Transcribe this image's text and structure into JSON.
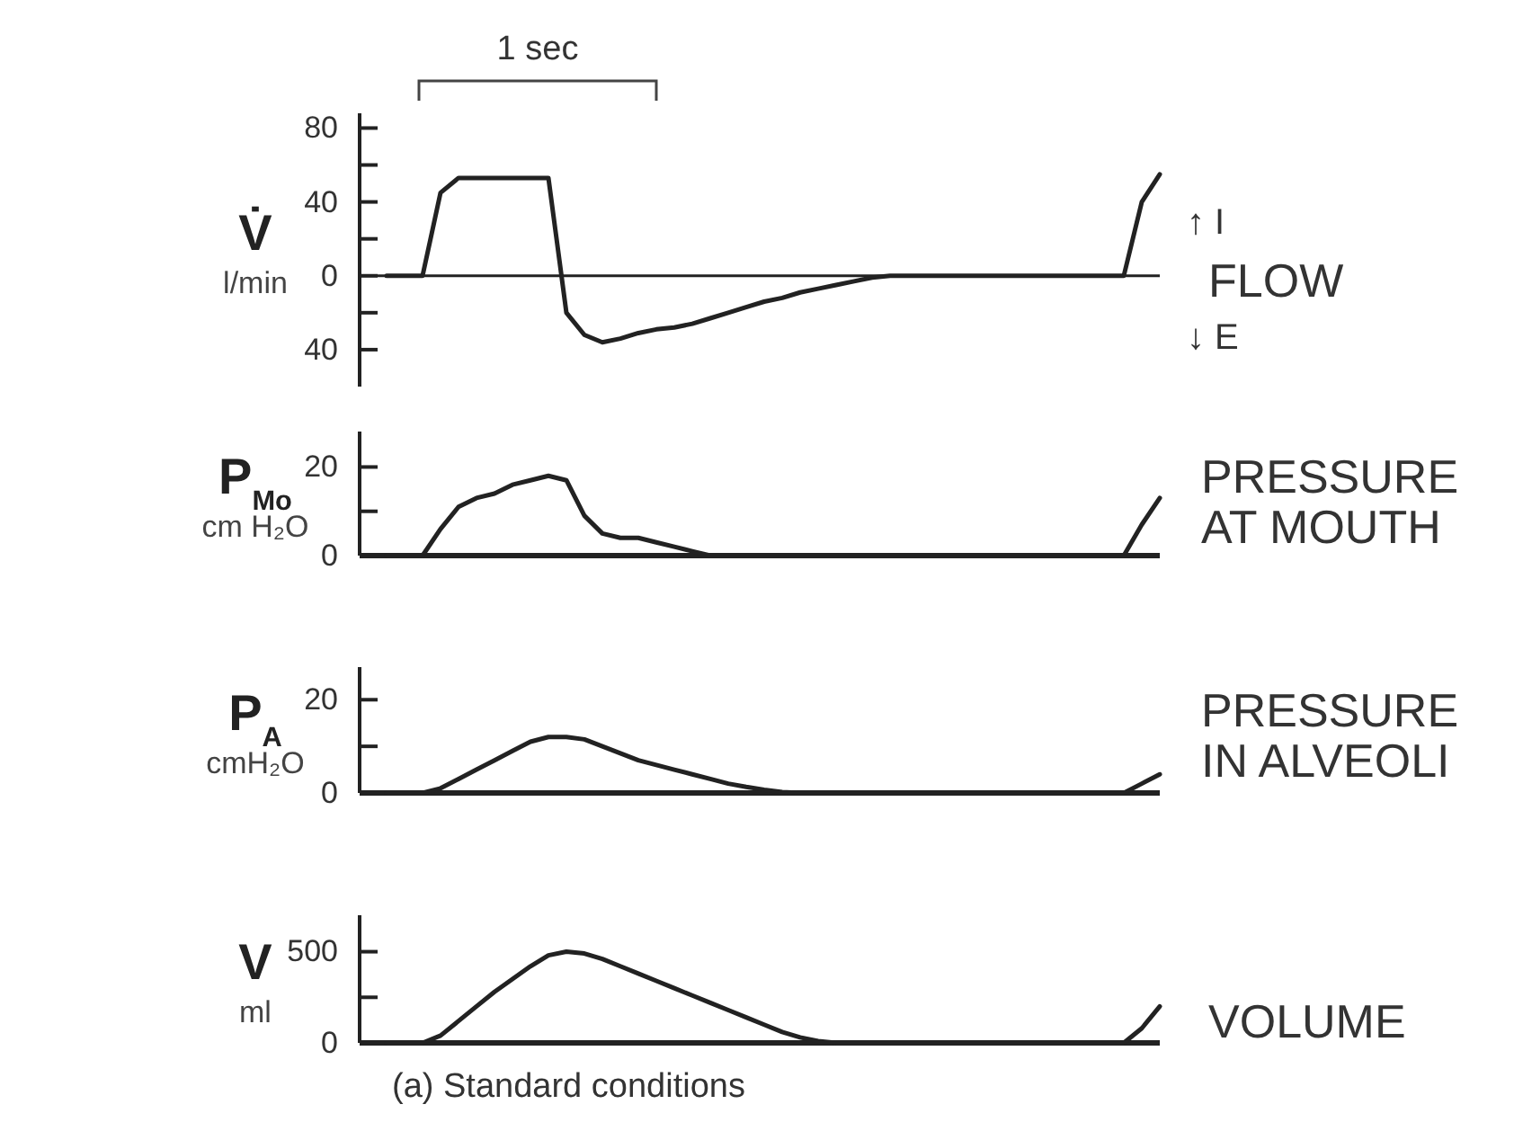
{
  "chart_data": [
    {
      "type": "line",
      "ylabel": "V̇ l/min",
      "tick_labels": "y",
      "categories": [
        null,
        null,
        null,
        null,
        null,
        null,
        null,
        null,
        null,
        null,
        null,
        null,
        null,
        null,
        null,
        null,
        null,
        null,
        null,
        null,
        null,
        null,
        null,
        null,
        null,
        null,
        null,
        null,
        null,
        null,
        null,
        null,
        null,
        null,
        null,
        null,
        null,
        null,
        null,
        null,
        null,
        null,
        null,
        null
      ],
      "series": [
        {
          "name": "FLOW",
          "color": "#222222",
          "values": [
            0,
            0,
            0,
            45,
            53,
            53,
            53,
            53,
            53,
            53,
            -20,
            -32,
            -36,
            -34,
            -31,
            -29,
            -28,
            -26,
            -23,
            -20,
            -17,
            -14,
            -12,
            -9,
            -7,
            -5,
            -3,
            -1,
            0,
            0,
            0,
            0,
            0,
            0,
            0,
            0,
            0,
            0,
            0,
            0,
            0,
            0,
            40,
            55
          ]
        }
      ],
      "ylim": [
        -60,
        88
      ],
      "yticks": [
        80,
        {
          "value": 60,
          "label": null
        },
        40,
        {
          "value": 20,
          "label": null
        },
        0,
        {
          "value": -20,
          "label": null
        },
        {
          "value": -40,
          "label": "40"
        }
      ],
      "annotations": [
        "1 sec",
        "↑ I",
        "↓ E"
      ]
    },
    {
      "type": "line",
      "ylabel": "P$_{Mo}$ cm H₂O",
      "tick_labels": "y",
      "categories": [
        null,
        null,
        null,
        null,
        null,
        null,
        null,
        null,
        null,
        null,
        null,
        null,
        null,
        null,
        null,
        null,
        null,
        null,
        null,
        null,
        null,
        null,
        null,
        null,
        null,
        null,
        null,
        null,
        null,
        null,
        null,
        null,
        null,
        null,
        null,
        null,
        null,
        null,
        null,
        null,
        null,
        null,
        null,
        null
      ],
      "series": [
        {
          "name": "PRESSURE AT MOUTH",
          "color": "#222222",
          "values": [
            0,
            0,
            0,
            6,
            11,
            13,
            14,
            16,
            17,
            18,
            17,
            9,
            5,
            4,
            4,
            3,
            2,
            1,
            0,
            0,
            0,
            0,
            0,
            0,
            0,
            0,
            0,
            0,
            0,
            0,
            0,
            0,
            0,
            0,
            0,
            0,
            0,
            0,
            0,
            0,
            0,
            0,
            7,
            13
          ]
        }
      ],
      "ylim": [
        0,
        28
      ],
      "yticks": [
        0,
        {
          "value": 10,
          "label": null
        },
        20
      ]
    },
    {
      "type": "line",
      "ylabel": "P$_{A}$ cmH₂O",
      "tick_labels": "y",
      "categories": [
        null,
        null,
        null,
        null,
        null,
        null,
        null,
        null,
        null,
        null,
        null,
        null,
        null,
        null,
        null,
        null,
        null,
        null,
        null,
        null,
        null,
        null,
        null,
        null,
        null,
        null,
        null,
        null,
        null,
        null,
        null,
        null,
        null,
        null,
        null,
        null,
        null,
        null,
        null,
        null,
        null,
        null,
        null,
        null
      ],
      "series": [
        {
          "name": "PRESSURE IN ALVEOLI",
          "color": "#222222",
          "values": [
            0,
            0,
            0,
            1,
            3,
            5,
            7,
            9,
            11,
            12,
            12,
            11.5,
            10,
            8.5,
            7,
            6,
            5,
            4,
            3,
            2,
            1.3,
            0.7,
            0.2,
            0,
            0,
            0,
            0,
            0,
            0,
            0,
            0,
            0,
            0,
            0,
            0,
            0,
            0,
            0,
            0,
            0,
            0,
            0,
            2,
            4
          ]
        }
      ],
      "ylim": [
        0,
        27
      ],
      "yticks": [
        0,
        {
          "value": 10,
          "label": null
        },
        20
      ]
    },
    {
      "type": "line",
      "ylabel": "V ml",
      "tick_labels": "y",
      "categories": [
        null,
        null,
        null,
        null,
        null,
        null,
        null,
        null,
        null,
        null,
        null,
        null,
        null,
        null,
        null,
        null,
        null,
        null,
        null,
        null,
        null,
        null,
        null,
        null,
        null,
        null,
        null,
        null,
        null,
        null,
        null,
        null,
        null,
        null,
        null,
        null,
        null,
        null,
        null,
        null,
        null,
        null,
        null,
        null
      ],
      "series": [
        {
          "name": "VOLUME",
          "color": "#222222",
          "values": [
            0,
            0,
            0,
            40,
            120,
            200,
            280,
            350,
            420,
            480,
            500,
            490,
            460,
            420,
            380,
            340,
            300,
            260,
            220,
            180,
            140,
            100,
            60,
            30,
            10,
            0,
            0,
            0,
            0,
            0,
            0,
            0,
            0,
            0,
            0,
            0,
            0,
            0,
            0,
            0,
            0,
            0,
            80,
            200
          ]
        }
      ],
      "ylim": [
        0,
        700
      ],
      "yticks": [
        0,
        {
          "value": 250,
          "label": null
        },
        500
      ],
      "annotations": [
        "(a) Standard conditions"
      ]
    }
  ]
}
